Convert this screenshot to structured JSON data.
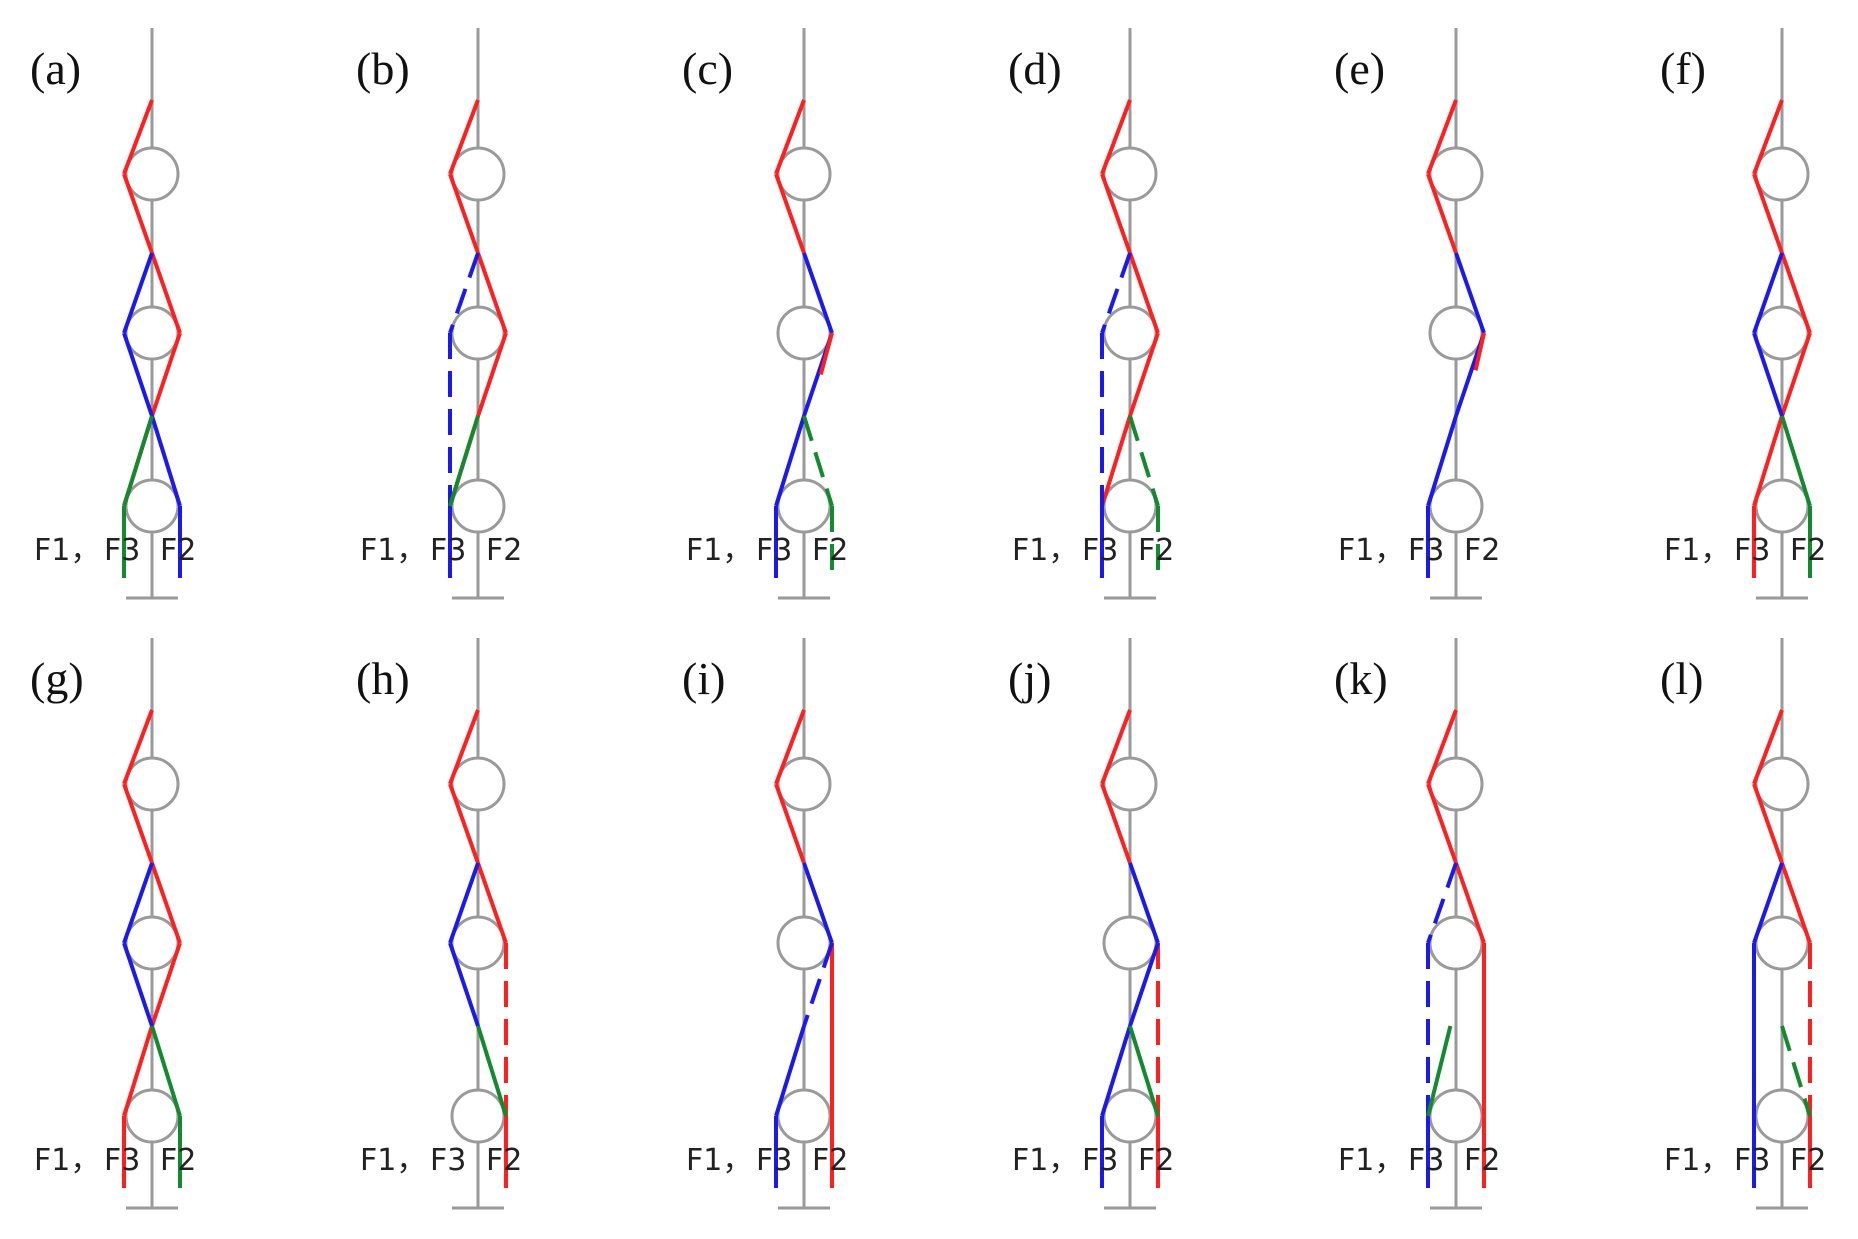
{
  "colors": {
    "F1": "#ff1f1f",
    "F2": "#1a1aee",
    "F3": "#138a2e",
    "pole": "#9a9a9a",
    "text": "#111111"
  },
  "foot_labels": {
    "f1": "F1，",
    "f3": "F3",
    "f2": "F2"
  },
  "panels": [
    {
      "label": "(a)",
      "segments": [
        [
          "R",
          0,
          0,
          -1,
          1
        ],
        [
          "R",
          -1,
          1,
          0,
          2
        ],
        [
          "R",
          0,
          2,
          1,
          3
        ],
        [
          "R",
          1,
          3,
          0,
          4
        ],
        [
          "R",
          0,
          4,
          -1,
          5
        ],
        [
          "R",
          -1,
          5,
          -1,
          5.5
        ],
        [
          "B",
          0,
          2,
          -1,
          3
        ],
        [
          "B",
          -1,
          3,
          0,
          4
        ],
        [
          "B",
          0,
          4,
          1,
          5
        ],
        [
          "B",
          1,
          5,
          1,
          6
        ],
        [
          "G",
          0,
          4,
          -1,
          5
        ],
        [
          "G",
          -1,
          5,
          -1,
          6
        ]
      ]
    },
    {
      "label": "(b)",
      "segments": [
        [
          "R",
          0,
          0,
          -1,
          1
        ],
        [
          "R",
          -1,
          1,
          0,
          2
        ],
        [
          "R",
          0,
          2,
          1,
          3
        ],
        [
          "R",
          1,
          3,
          0,
          4
        ],
        [
          "R",
          0,
          4,
          -1,
          5
        ],
        [
          "Bd",
          0,
          2,
          -1,
          3
        ],
        [
          "Bd",
          -1,
          3,
          -1,
          5
        ],
        [
          "B",
          -1,
          5,
          -1,
          6
        ],
        [
          "G",
          0,
          4,
          -1,
          5
        ]
      ]
    },
    {
      "label": "(c)",
      "segments": [
        [
          "R",
          0,
          0,
          -1,
          1
        ],
        [
          "R",
          -1,
          1,
          0,
          2
        ],
        [
          "B",
          0,
          2,
          1,
          3
        ],
        [
          "B",
          1,
          3,
          0,
          4
        ],
        [
          "B",
          0,
          4,
          -1,
          5
        ],
        [
          "B",
          -1,
          5,
          -1,
          6
        ],
        [
          "R",
          1,
          3,
          0.6,
          3.5
        ],
        [
          "Gd",
          0,
          4,
          1,
          5
        ],
        [
          "Gd",
          1,
          5,
          1,
          6
        ]
      ]
    },
    {
      "label": "(d)",
      "segments": [
        [
          "R",
          0,
          0,
          -1,
          1
        ],
        [
          "R",
          -1,
          1,
          0,
          2
        ],
        [
          "R",
          0,
          2,
          1,
          3
        ],
        [
          "R",
          1,
          3,
          0,
          4
        ],
        [
          "R",
          0,
          4,
          -1,
          5
        ],
        [
          "Bd",
          0,
          2,
          -1,
          3
        ],
        [
          "Bd",
          -1,
          3,
          -1,
          5
        ],
        [
          "B",
          -1,
          5,
          -1,
          6
        ],
        [
          "Gd",
          0,
          4,
          1,
          5
        ],
        [
          "Gd",
          1,
          5,
          1,
          6
        ]
      ]
    },
    {
      "label": "(e)",
      "segments": [
        [
          "R",
          0,
          0,
          -1,
          1
        ],
        [
          "R",
          -1,
          1,
          0,
          2
        ],
        [
          "B",
          0,
          2,
          1,
          3
        ],
        [
          "B",
          1,
          3,
          0,
          4
        ],
        [
          "B",
          0,
          4,
          -1,
          5
        ],
        [
          "B",
          -1,
          5,
          -1,
          6
        ],
        [
          "R",
          1,
          3,
          0.7,
          3.45
        ]
      ]
    },
    {
      "label": "(f)",
      "segments": [
        [
          "R",
          0,
          0,
          -1,
          1
        ],
        [
          "R",
          -1,
          1,
          0,
          2
        ],
        [
          "R",
          0,
          2,
          1,
          3
        ],
        [
          "R",
          1,
          3,
          0,
          4
        ],
        [
          "R",
          0,
          4,
          -1,
          5
        ],
        [
          "R",
          -1,
          5,
          -1,
          6
        ],
        [
          "B",
          0,
          2,
          -1,
          3
        ],
        [
          "B",
          -1,
          3,
          0,
          4
        ],
        [
          "G",
          0,
          4,
          1,
          5
        ],
        [
          "G",
          1,
          5,
          1,
          6
        ]
      ]
    },
    {
      "label": "(g)",
      "segments": [
        [
          "R",
          0,
          0,
          -1,
          1
        ],
        [
          "R",
          -1,
          1,
          0,
          2
        ],
        [
          "R",
          0,
          2,
          1,
          3
        ],
        [
          "R",
          1,
          3,
          0,
          4
        ],
        [
          "R",
          0,
          4,
          -1,
          5
        ],
        [
          "R",
          -1,
          5,
          -1,
          6
        ],
        [
          "B",
          0,
          2,
          -1,
          3
        ],
        [
          "B",
          -1,
          3,
          0,
          4
        ],
        [
          "G",
          0,
          4,
          1,
          5
        ],
        [
          "G",
          1,
          5,
          1,
          6
        ]
      ]
    },
    {
      "label": "(h)",
      "segments": [
        [
          "R",
          0,
          0,
          -1,
          1
        ],
        [
          "R",
          -1,
          1,
          0,
          2
        ],
        [
          "R",
          0,
          2,
          1,
          3
        ],
        [
          "Rd",
          1,
          3,
          1,
          5
        ],
        [
          "R",
          1,
          5,
          1,
          6
        ],
        [
          "B",
          0,
          2,
          -1,
          3
        ],
        [
          "B",
          -1,
          3,
          0,
          4
        ],
        [
          "G",
          0,
          4,
          1,
          5
        ]
      ]
    },
    {
      "label": "(i)",
      "segments": [
        [
          "R",
          0,
          0,
          -1,
          1
        ],
        [
          "R",
          -1,
          1,
          0,
          2
        ],
        [
          "B",
          0,
          2,
          1,
          3
        ],
        [
          "R",
          1,
          3,
          1,
          6
        ],
        [
          "Bd",
          1,
          3,
          0,
          4
        ],
        [
          "B",
          0,
          4,
          -1,
          5
        ],
        [
          "B",
          -1,
          5,
          -1,
          6
        ]
      ]
    },
    {
      "label": "(j)",
      "segments": [
        [
          "R",
          0,
          0,
          -1,
          1
        ],
        [
          "R",
          -1,
          1,
          0,
          2
        ],
        [
          "B",
          0,
          2,
          1,
          3
        ],
        [
          "Rd",
          1,
          3,
          1,
          5
        ],
        [
          "R",
          1,
          5,
          1,
          6
        ],
        [
          "B",
          1,
          3,
          0,
          4
        ],
        [
          "B",
          0,
          4,
          -1,
          5
        ],
        [
          "B",
          -1,
          5,
          -1,
          6
        ],
        [
          "G",
          0,
          4,
          1,
          5
        ]
      ]
    },
    {
      "label": "(k)",
      "segments": [
        [
          "R",
          0,
          0,
          -1,
          1
        ],
        [
          "R",
          -1,
          1,
          0,
          2
        ],
        [
          "R",
          0,
          2,
          1,
          3
        ],
        [
          "R",
          1,
          3,
          1,
          6
        ],
        [
          "Bd",
          0,
          2,
          -1,
          3
        ],
        [
          "Bd",
          -1,
          3,
          -1,
          5
        ],
        [
          "B",
          -1,
          5,
          -1,
          6
        ],
        [
          "G",
          -1,
          5,
          -0.2,
          4
        ]
      ]
    },
    {
      "label": "(l)",
      "segments": [
        [
          "R",
          0,
          0,
          -1,
          1
        ],
        [
          "R",
          -1,
          1,
          0,
          2
        ],
        [
          "R",
          0,
          2,
          1,
          3
        ],
        [
          "Rd",
          1,
          3,
          1,
          5
        ],
        [
          "R",
          1,
          5,
          1,
          6
        ],
        [
          "B",
          0,
          2,
          -1,
          3
        ],
        [
          "B",
          -1,
          3,
          -1,
          6
        ],
        [
          "Gd",
          0,
          4,
          1,
          5
        ]
      ]
    }
  ]
}
